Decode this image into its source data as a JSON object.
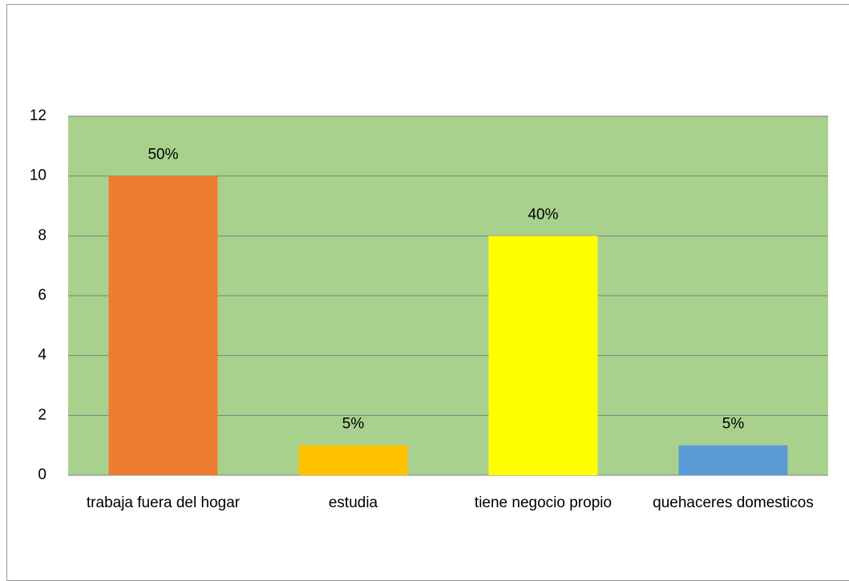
{
  "chart_data": {
    "type": "bar",
    "categories": [
      "trabaja fuera del hogar",
      "estudia",
      "tiene negocio propio",
      "quehaceres domesticos"
    ],
    "values": [
      10,
      1,
      8,
      1
    ],
    "value_labels": [
      "50%",
      "5%",
      "40%",
      "5%"
    ],
    "colors": [
      "#ed7d31",
      "#ffc000",
      "#ffff00",
      "#5b9bd5"
    ],
    "background": "#a9d18e",
    "ylim": [
      0,
      12
    ],
    "yticks": [
      0,
      2,
      4,
      6,
      8,
      10,
      12
    ],
    "grid": true
  }
}
